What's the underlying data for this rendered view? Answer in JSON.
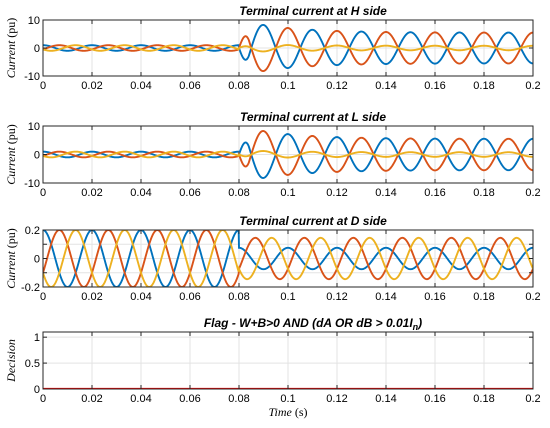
{
  "chart_data": [
    {
      "type": "line",
      "title": "Terminal current at H side",
      "ylabel": {
        "main": "Current",
        "unit": " (pu)"
      },
      "xlim": [
        0,
        0.2
      ],
      "ylim": [
        -10,
        10
      ],
      "xticks": [
        "0",
        "0.02",
        "0.04",
        "0.06",
        "0.08",
        "0.1",
        "0.12",
        "0.14",
        "0.16",
        "0.18",
        "0.2"
      ],
      "yticks": [
        "-10",
        "0",
        "10"
      ],
      "ytick_values": [
        -10,
        0,
        10
      ],
      "grid": true,
      "fault_time": 0.08,
      "frequency_hz": 50,
      "series": [
        {
          "color": "#0072BD",
          "pre_amp": 1.0,
          "peak_amp": 10,
          "end_amp": 5.5,
          "phase_deg": 90,
          "sign": 1
        },
        {
          "color": "#D95319",
          "pre_amp": 1.0,
          "peak_amp": 10,
          "end_amp": 5.5,
          "phase_deg": -30,
          "sign": -1
        },
        {
          "color": "#EDB120",
          "pre_amp": 1.0,
          "peak_amp": 1.5,
          "end_amp": 0.8,
          "phase_deg": 210,
          "sign": 1
        }
      ]
    },
    {
      "type": "line",
      "title": "Terminal current at L side",
      "ylabel": {
        "main": "Current",
        "unit": " (pu)"
      },
      "xlim": [
        0,
        0.2
      ],
      "ylim": [
        -10,
        10
      ],
      "xticks": [
        "0",
        "0.02",
        "0.04",
        "0.06",
        "0.08",
        "0.1",
        "0.12",
        "0.14",
        "0.16",
        "0.18",
        "0.2"
      ],
      "yticks": [
        "-10",
        "0",
        "10"
      ],
      "ytick_values": [
        -10,
        0,
        10
      ],
      "grid": true,
      "fault_time": 0.08,
      "frequency_hz": 50,
      "series": [
        {
          "color": "#0072BD",
          "pre_amp": 1.0,
          "peak_amp": 10,
          "end_amp": 5.5,
          "phase_deg": 90,
          "sign": -1
        },
        {
          "color": "#D95319",
          "pre_amp": 1.0,
          "peak_amp": 10,
          "end_amp": 5.5,
          "phase_deg": -30,
          "sign": 1
        },
        {
          "color": "#EDB120",
          "pre_amp": 1.0,
          "peak_amp": 1.5,
          "end_amp": 0.8,
          "phase_deg": 210,
          "sign": -1
        }
      ]
    },
    {
      "type": "line",
      "title": "Terminal current at D side",
      "ylabel": {
        "main": "Current",
        "unit": " (pu)"
      },
      "xlim": [
        0,
        0.2
      ],
      "ylim": [
        -0.2,
        0.2
      ],
      "xticks": [
        "0",
        "0.02",
        "0.04",
        "0.06",
        "0.08",
        "0.1",
        "0.12",
        "0.14",
        "0.16",
        "0.18",
        "0.2"
      ],
      "yticks": [
        "-0.2",
        "0",
        "0.2"
      ],
      "ytick_values": [
        -0.2,
        -0.1,
        0,
        0.1,
        0.2
      ],
      "ytick_labels": [
        "-0.2",
        "",
        "0",
        "",
        "0.2"
      ],
      "grid": true,
      "fault_time": 0.08,
      "frequency_hz": 50,
      "series": [
        {
          "color": "#0072BD",
          "pre_amp": 0.2,
          "post_amp": 0.075,
          "phase_deg": 90
        },
        {
          "color": "#D95319",
          "pre_amp": 0.2,
          "post_amp": 0.145,
          "phase_deg": -30
        },
        {
          "color": "#EDB120",
          "pre_amp": 0.2,
          "post_amp": 0.145,
          "phase_deg": 210
        }
      ]
    },
    {
      "type": "line",
      "title": "Flag - W+B>0 AND (dA OR dB > 0.01I",
      "title_sub": "n",
      "title_close": ")",
      "ylabel": {
        "main": "Decision",
        "unit": ""
      },
      "xlabel": {
        "main": "Time",
        "unit": " (s)"
      },
      "xlim": [
        0,
        0.2
      ],
      "ylim": [
        0,
        1.1
      ],
      "xticks": [
        "0",
        "0.02",
        "0.04",
        "0.06",
        "0.08",
        "0.1",
        "0.12",
        "0.14",
        "0.16",
        "0.18",
        "0.2"
      ],
      "yticks": [
        "0",
        "0.5",
        "1"
      ],
      "ytick_values": [
        0,
        0.5,
        1
      ],
      "grid": true,
      "series": [
        {
          "color": "#FF0000",
          "x": [
            0,
            0.2
          ],
          "y": [
            0,
            0
          ]
        }
      ]
    }
  ]
}
